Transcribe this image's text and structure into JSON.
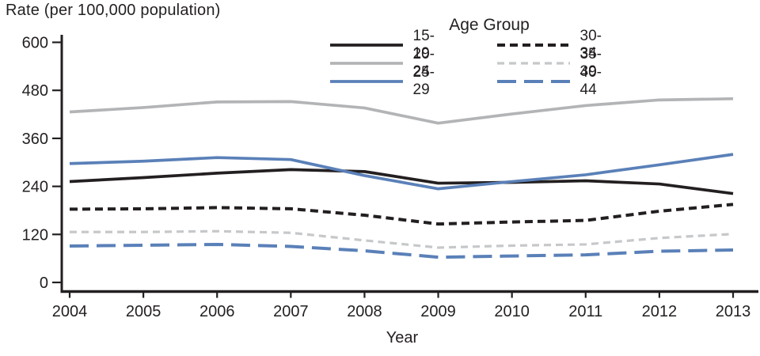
{
  "figure": {
    "y_axis_title": "Rate (per 100,000 population)",
    "x_axis_title": "Year",
    "legend_title": "Age Group"
  },
  "colors": {
    "ink": "#231f20",
    "gray_solid": "#b2b4b6",
    "gray_dashed": "#c6c8ca",
    "blue": "#5a80b8"
  },
  "chart_data": {
    "type": "line",
    "title": "",
    "ylabel": "Rate (per 100,000 population)",
    "xlabel": "Year",
    "legend_title": "Age Group",
    "legend_position": "top-center-two-columns",
    "grid": false,
    "ylim": [
      0,
      600
    ],
    "y_ticks": [
      0,
      120,
      240,
      360,
      480,
      600
    ],
    "x": [
      2004,
      2005,
      2006,
      2007,
      2008,
      2009,
      2010,
      2011,
      2012,
      2013
    ],
    "series": [
      {
        "name": "15-19",
        "color": "#231f20",
        "style": "solid",
        "values": [
          252,
          262,
          273,
          282,
          277,
          248,
          250,
          254,
          246,
          222
        ]
      },
      {
        "name": "20-24",
        "color": "#b2b4b6",
        "style": "solid",
        "values": [
          426,
          437,
          451,
          452,
          436,
          398,
          421,
          442,
          456,
          459
        ]
      },
      {
        "name": "25-29",
        "color": "#5a80b8",
        "style": "solid",
        "values": [
          297,
          303,
          312,
          307,
          267,
          234,
          252,
          269,
          294,
          320
        ]
      },
      {
        "name": "30-34",
        "color": "#231f20",
        "style": "short-dash",
        "values": [
          183,
          184,
          187,
          184,
          168,
          146,
          151,
          155,
          178,
          195
        ]
      },
      {
        "name": "35-39",
        "color": "#c6c8ca",
        "style": "short-dash-thin",
        "values": [
          126,
          126,
          128,
          124,
          105,
          87,
          92,
          95,
          111,
          121
        ]
      },
      {
        "name": "40-44",
        "color": "#5a80b8",
        "style": "long-dash",
        "values": [
          91,
          93,
          95,
          90,
          79,
          63,
          66,
          69,
          78,
          81
        ]
      }
    ]
  }
}
